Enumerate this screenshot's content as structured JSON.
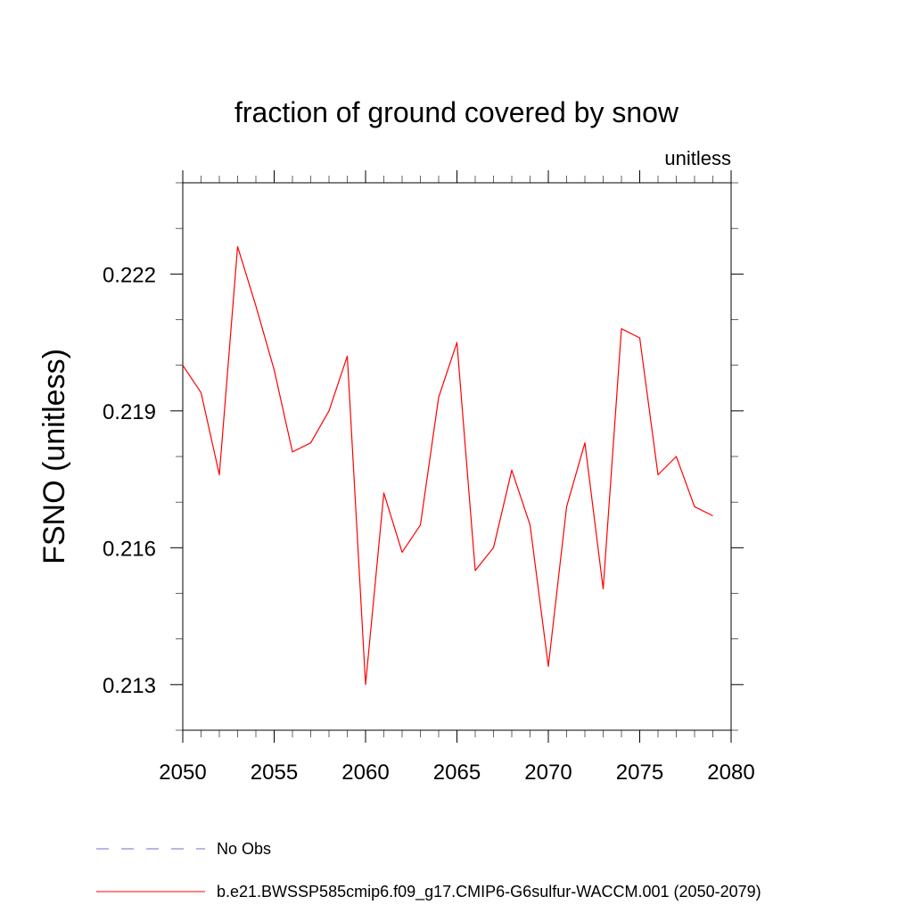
{
  "chart_data": {
    "type": "line",
    "title": "fraction of ground covered by snow",
    "units_label": "unitless",
    "xlabel": "",
    "ylabel": "FSNO  (unitless)",
    "xlim": [
      2050,
      2080
    ],
    "ylim": [
      0.212,
      0.224
    ],
    "x_ticks": [
      2050,
      2055,
      2060,
      2065,
      2070,
      2075,
      2080
    ],
    "x_tick_labels": [
      "2050",
      "2055",
      "2060",
      "2065",
      "2070",
      "2075",
      "2080"
    ],
    "y_ticks": [
      0.213,
      0.216,
      0.219,
      0.222
    ],
    "y_tick_labels": [
      "0.213",
      "0.216",
      "0.219",
      "0.222"
    ],
    "grid": false,
    "legend_position": "bottom",
    "series": [
      {
        "name": "b.e21.BWSSP585cmip6.f09_g17.CMIP6-G6sulfur-WACCM.001 (2050-2079)",
        "color": "#ff0000",
        "dash": "solid",
        "x": [
          2050,
          2051,
          2052,
          2053,
          2054,
          2055,
          2056,
          2057,
          2058,
          2059,
          2060,
          2061,
          2062,
          2063,
          2064,
          2065,
          2066,
          2067,
          2068,
          2069,
          2070,
          2071,
          2072,
          2073,
          2074,
          2075,
          2076,
          2077,
          2078,
          2079
        ],
        "values": [
          0.22,
          0.2194,
          0.2176,
          0.2226,
          0.2213,
          0.2199,
          0.2181,
          0.2183,
          0.219,
          0.2202,
          0.213,
          0.2172,
          0.2159,
          0.2165,
          0.2193,
          0.2205,
          0.2155,
          0.216,
          0.2177,
          0.2165,
          0.2134,
          0.2169,
          0.2183,
          0.2151,
          0.2208,
          0.2206,
          0.2176,
          0.218,
          0.2169,
          0.2167
        ]
      }
    ],
    "legend": [
      {
        "label": "No Obs",
        "color": "#7b68c8",
        "dash": "dashed"
      },
      {
        "label": "b.e21.BWSSP585cmip6.f09_g17.CMIP6-G6sulfur-WACCM.001 (2050-2079)",
        "color": "#ff0000",
        "dash": "solid"
      }
    ]
  }
}
